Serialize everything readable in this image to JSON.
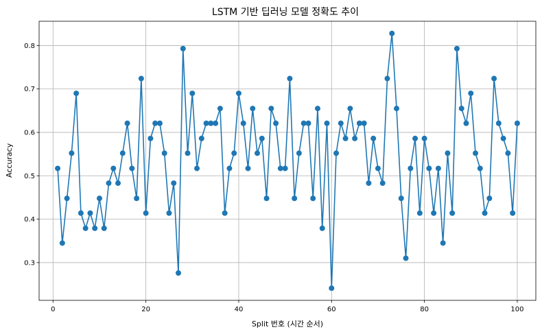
{
  "chart_data": {
    "type": "line",
    "title": "LSTM 기반 딥러닝 모델 정확도 추이",
    "xlabel": "Split 번호 (시간 순서)",
    "ylabel": "Accuracy",
    "xlim": [
      -3,
      104
    ],
    "ylim": [
      0.213,
      0.856
    ],
    "xticks": [
      0,
      20,
      40,
      60,
      80,
      100
    ],
    "yticks": [
      0.3,
      0.4,
      0.5,
      0.6,
      0.7,
      0.8
    ],
    "grid": true,
    "marker": "circle",
    "color": "#1f77b4",
    "series": [
      {
        "x": [
          1,
          2,
          3,
          4,
          5,
          6,
          7,
          8,
          9,
          10,
          11,
          12,
          13,
          14,
          15,
          16,
          17,
          18,
          19,
          20,
          21,
          22,
          23,
          24,
          25,
          26,
          27,
          28,
          29,
          30,
          31,
          32,
          33,
          34,
          35,
          36,
          37,
          38,
          39,
          40,
          41,
          42,
          43,
          44,
          45,
          46,
          47,
          48,
          49,
          50,
          51,
          52,
          53,
          54,
          55,
          56,
          57,
          58,
          59,
          60,
          61,
          62,
          63,
          64,
          65,
          66,
          67,
          68,
          69,
          70,
          71,
          72,
          73,
          74,
          75,
          76,
          77,
          78,
          79,
          80,
          81,
          82,
          83,
          84,
          85,
          86,
          87,
          88,
          89,
          90,
          91,
          92,
          93,
          94,
          95,
          96,
          97,
          98,
          99,
          100
        ],
        "y": [
          0.517,
          0.345,
          0.448,
          0.552,
          0.69,
          0.414,
          0.379,
          0.414,
          0.379,
          0.448,
          0.379,
          0.483,
          0.517,
          0.483,
          0.552,
          0.621,
          0.517,
          0.448,
          0.724,
          0.414,
          0.586,
          0.621,
          0.621,
          0.552,
          0.414,
          0.483,
          0.276,
          0.793,
          0.552,
          0.69,
          0.517,
          0.586,
          0.621,
          0.621,
          0.621,
          0.655,
          0.414,
          0.517,
          0.552,
          0.69,
          0.621,
          0.517,
          0.655,
          0.552,
          0.586,
          0.448,
          0.655,
          0.621,
          0.517,
          0.517,
          0.724,
          0.448,
          0.552,
          0.621,
          0.621,
          0.448,
          0.655,
          0.379,
          0.621,
          0.241,
          0.552,
          0.621,
          0.586,
          0.655,
          0.586,
          0.621,
          0.621,
          0.483,
          0.586,
          0.517,
          0.483,
          0.724,
          0.828,
          0.655,
          0.448,
          0.31,
          0.517,
          0.586,
          0.414,
          0.586,
          0.517,
          0.414,
          0.517,
          0.345,
          0.552,
          0.414,
          0.793,
          0.655,
          0.621,
          0.69,
          0.552,
          0.517,
          0.414,
          0.448,
          0.724,
          0.621,
          0.586,
          0.552,
          0.414,
          0.621
        ]
      }
    ]
  }
}
